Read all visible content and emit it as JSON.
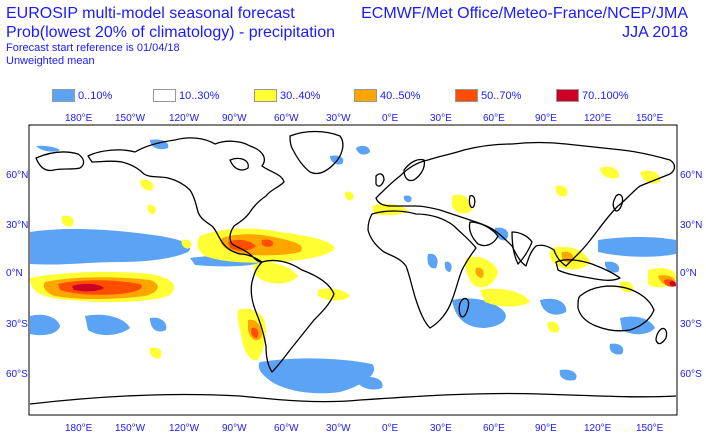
{
  "header": {
    "title_line1": "EUROSIP multi-model seasonal forecast",
    "title_line2": "Prob(lowest 20% of climatology) - precipitation",
    "start_reference": "Forecast start reference is 01/04/18",
    "weighting": "Unweighted mean",
    "centres": "ECMWF/Met Office/Meteo-France/NCEP/JMA",
    "season": "JJA 2018"
  },
  "legend": [
    {
      "label": "0..10%",
      "color": "#5ba3f5"
    },
    {
      "label": "10..30%",
      "color": "#ffffff"
    },
    {
      "label": "30..40%",
      "color": "#ffff33"
    },
    {
      "label": "40..50%",
      "color": "#ffa500"
    },
    {
      "label": "50..70%",
      "color": "#ff4d00"
    },
    {
      "label": "70..100%",
      "color": "#cc0026"
    }
  ],
  "longitude_ticks": [
    "180°E",
    "150°W",
    "120°W",
    "90°W",
    "60°W",
    "30°W",
    "0°E",
    "30°E",
    "60°E",
    "90°E",
    "120°E",
    "150°E"
  ],
  "latitude_ticks": [
    "60°N",
    "30°N",
    "0°N",
    "30°S",
    "60°S"
  ],
  "colors": {
    "text": "#1a1aff",
    "coast": "#000000",
    "low": "#5ba3f5",
    "p30": "#ffff33",
    "p40": "#ffa500",
    "p50": "#ff4d00",
    "p70": "#cc0026"
  }
}
